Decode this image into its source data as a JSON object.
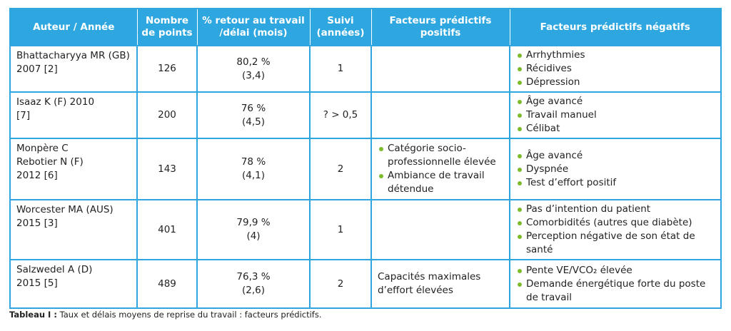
{
  "headers": [
    "Auteur / Année",
    "Nombre de points",
    "% retour au travail /délai (mois)",
    "Suivi (années)",
    "Facteurs prédictifs positifs",
    "Facteurs prédictifs négatifs"
  ],
  "rows": [
    {
      "author_lines": [
        "Bhattacharyya MR (GB)",
        "2007 [2]"
      ],
      "points": "126",
      "retour": [
        "80,2 %",
        "(3,4)"
      ],
      "suivi": "1",
      "positifs": [],
      "negatifs": [
        "Arrhythmies",
        "Récidives",
        "Dépression"
      ]
    },
    {
      "author_lines": [
        "Isaaz K (F) 2010",
        "[7]"
      ],
      "points": "200",
      "retour": [
        "76 %",
        "(4,5)"
      ],
      "suivi": "? > 0,5",
      "positifs": [],
      "negatifs": [
        "Âge avancé",
        "Travail manuel",
        "Célibat"
      ]
    },
    {
      "author_lines": [
        "Monpère C",
        "Rebotier N (F)",
        "2012 [6]"
      ],
      "points": "143",
      "retour": [
        "78 %",
        "(4,1)"
      ],
      "suivi": "2",
      "positifs": [
        "Catégorie socio-professionnelle élevée",
        "Ambiance de travail détendue"
      ],
      "negatifs": [
        "Âge avancé",
        "Dyspnée",
        "Test d’effort positif"
      ]
    },
    {
      "author_lines": [
        "Worcester MA (AUS)",
        "2015 [3]"
      ],
      "points": "401",
      "retour": [
        "79,9 %",
        "(4)"
      ],
      "suivi": "1",
      "positifs": [],
      "negatifs": [
        "Pas d’intention du patient",
        "Comorbidités (autres que diabète)",
        "Perception négative de son état de santé"
      ]
    },
    {
      "author_lines": [
        "Salzwedel A (D)",
        "2015 [5]"
      ],
      "points": "489",
      "retour": [
        "76,3 %",
        "(2,6)"
      ],
      "suivi": "2",
      "positifs_plain": "Capacités maximales d’effort élevées",
      "positifs": [],
      "negatifs": [
        "Pente VE/VCO₂ élevée",
        "Demande énergétique forte du poste de travail"
      ]
    }
  ],
  "caption": {
    "label": "Tableau I :",
    "text": " Taux et délais moyens de reprise du travail : facteurs prédictifs."
  },
  "colors": {
    "header_bg": "#2ea7e0",
    "bullet": "#7dbb2d",
    "border": "#2ea7e0"
  }
}
